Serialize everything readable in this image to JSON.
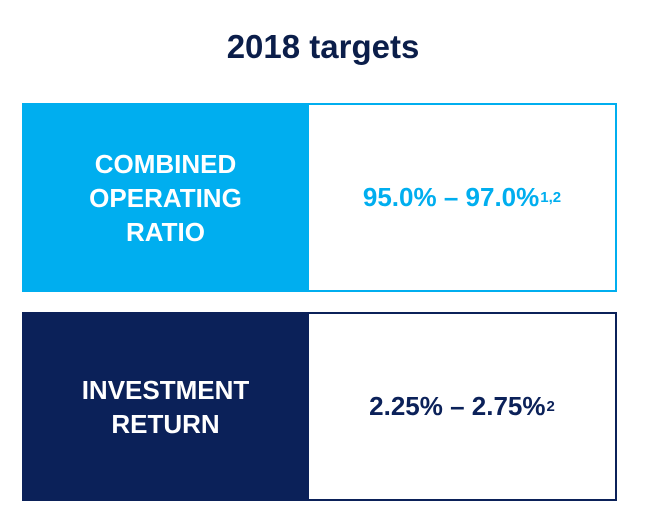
{
  "title": "2018 targets",
  "cards": [
    {
      "label_lines": [
        "COMBINED",
        "OPERATING",
        "RATIO"
      ],
      "value": "95.0% – 97.0%",
      "footnote": "1,2",
      "accent_color": "#00aeef"
    },
    {
      "label_lines": [
        "INVESTMENT",
        "RETURN"
      ],
      "value": "2.25% – 2.75%",
      "footnote": "2",
      "accent_color": "#0b2159"
    }
  ]
}
